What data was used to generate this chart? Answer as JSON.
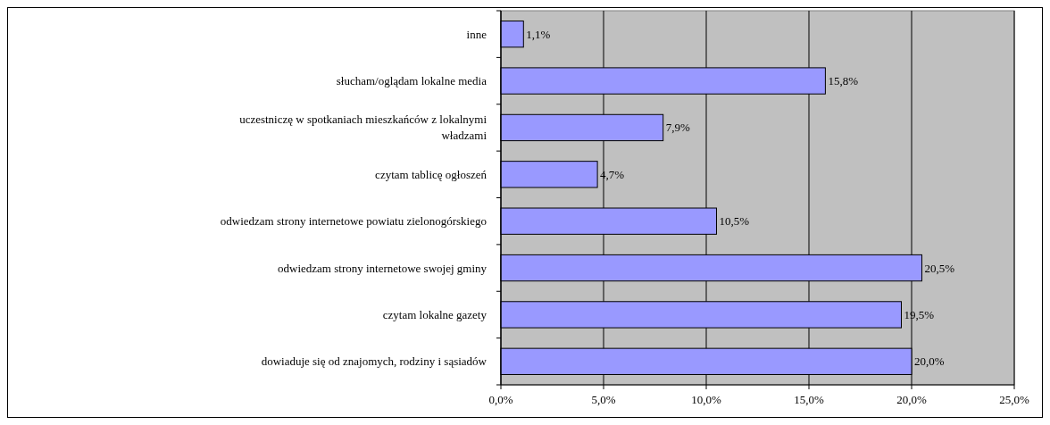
{
  "chart_data": {
    "type": "bar",
    "orientation": "horizontal",
    "categories": [
      "inne",
      "słucham/oglądam lokalne media",
      "uczestniczę  w spotkaniach mieszkańców z lokalnymi władzami",
      "czytam tablicę ogłoszeń",
      "odwiedzam strony internetowe powiatu zielonogórskiego",
      "odwiedzam strony internetowe swojej gminy",
      "czytam lokalne gazety",
      "dowiaduje się od znajomych, rodziny i sąsiadów"
    ],
    "values": [
      1.1,
      15.8,
      7.9,
      4.7,
      10.5,
      20.5,
      19.5,
      20.0
    ],
    "value_labels": [
      "1,1%",
      "15,8%",
      "7,9%",
      "4,7%",
      "10,5%",
      "20,5%",
      "19,5%",
      "20,0%"
    ],
    "color": "#9999ff",
    "xlim": [
      0,
      25
    ],
    "xticks": [
      {
        "value": 0,
        "label": "0,0%"
      },
      {
        "value": 5,
        "label": "5,0%"
      },
      {
        "value": 10,
        "label": "10,0%"
      },
      {
        "value": 15,
        "label": "15,0%"
      },
      {
        "value": 20,
        "label": "20,0%"
      },
      {
        "value": 25,
        "label": "25,0%"
      }
    ],
    "grid": "x"
  }
}
